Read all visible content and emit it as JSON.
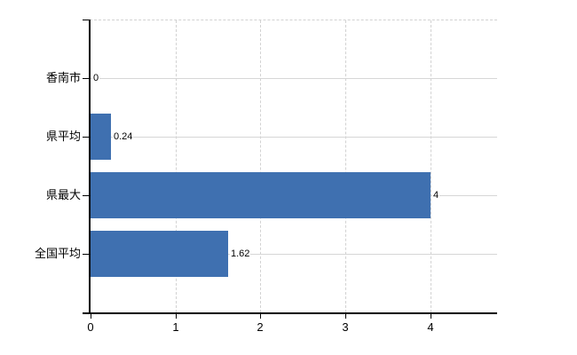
{
  "chart_data": {
    "type": "bar",
    "orientation": "horizontal",
    "title": "",
    "xlabel": "",
    "ylabel": "",
    "categories": [
      "香南市",
      "県平均",
      "県最大",
      "全国平均"
    ],
    "values": [
      0,
      0.24,
      4,
      1.62
    ],
    "value_labels": [
      "0",
      "0.24",
      "4",
      "1.62"
    ],
    "xlim": [
      0,
      4.8
    ],
    "x_ticks": [
      0,
      1,
      2,
      3,
      4
    ],
    "x_tick_labels": [
      "0",
      "1",
      "2",
      "3",
      "4"
    ],
    "grid": true,
    "legend": false,
    "colors": {
      "bar": "#3f70b0",
      "gridline": "#d6d6d6",
      "axis": "#000000",
      "text": "#000000",
      "background": "#ffffff"
    }
  }
}
